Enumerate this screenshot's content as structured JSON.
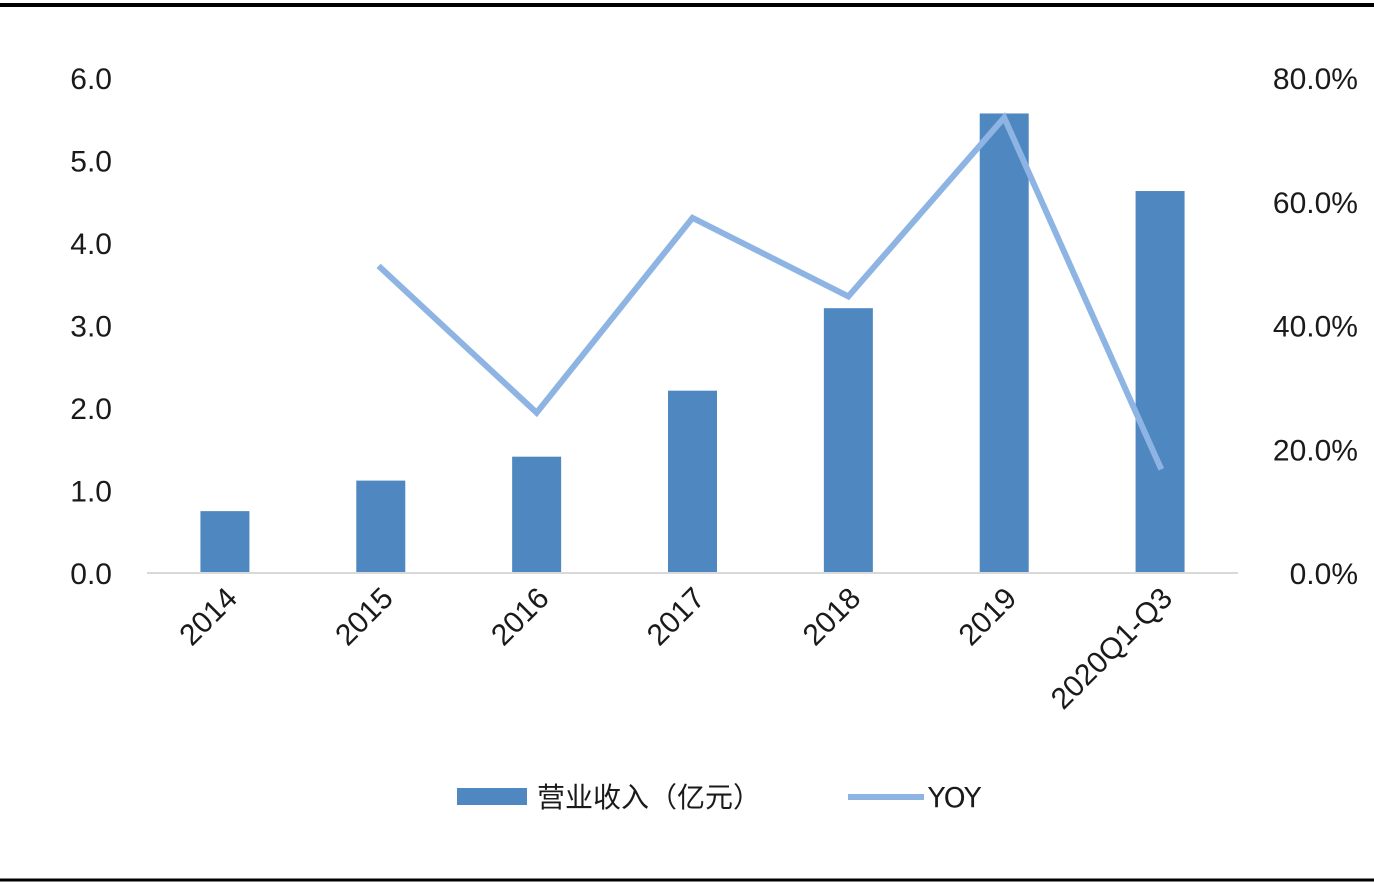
{
  "colors": {
    "bar": "#4f88c0",
    "line": "#8db4e3",
    "axis": "#d9d9d9",
    "frame": "#000000",
    "text": "#1a1a1a"
  },
  "chart_data": {
    "type": "bar",
    "categories": [
      "2014",
      "2015",
      "2016",
      "2017",
      "2018",
      "2019",
      "2020Q1-Q3"
    ],
    "series": [
      {
        "name": "营业收入（亿元）",
        "type": "bar",
        "axis": "left",
        "values": [
          0.75,
          1.12,
          1.41,
          2.21,
          3.21,
          5.57,
          4.63
        ]
      },
      {
        "name": "YOY",
        "type": "line",
        "axis": "right",
        "values": [
          null,
          49.3,
          25.9,
          57.4,
          44.7,
          73.6,
          17.2
        ]
      }
    ],
    "y_left": {
      "range": [
        0,
        6
      ],
      "ticks": [
        "0.0",
        "1.0",
        "2.0",
        "3.0",
        "4.0",
        "5.0",
        "6.0"
      ]
    },
    "y_right": {
      "range": [
        0,
        80
      ],
      "ticks": [
        "0.0%",
        "20.0%",
        "40.0%",
        "60.0%",
        "80.0%"
      ]
    },
    "grid": false,
    "legend": "bottom-center",
    "title": "",
    "xlabel": "",
    "ylabel": ""
  }
}
